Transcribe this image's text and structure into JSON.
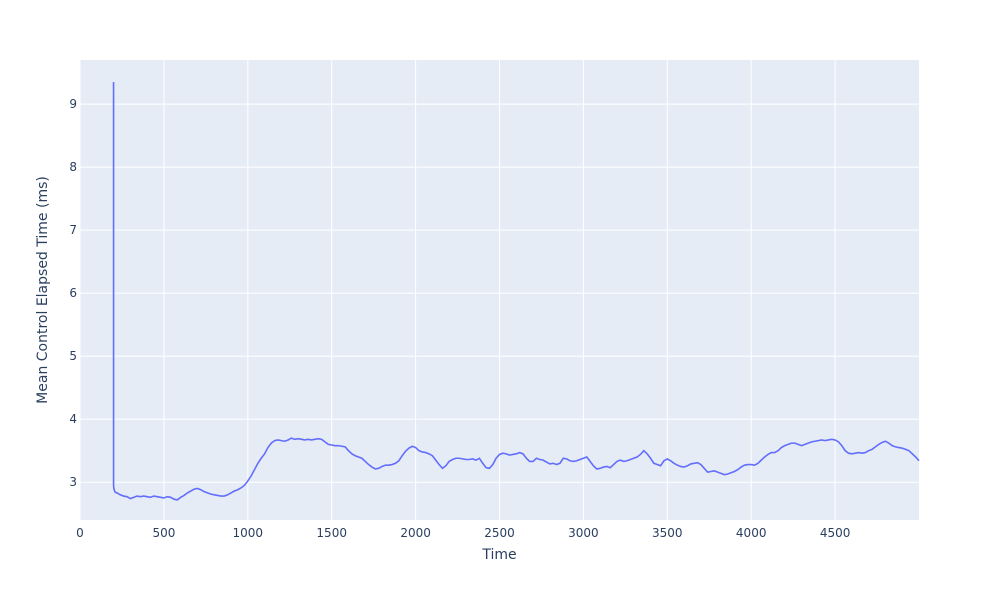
{
  "chart_data": {
    "type": "line",
    "xlabel": "Time",
    "ylabel": "Mean Control Elapsed Time (ms)",
    "xlim": [
      0,
      5000
    ],
    "ylim": [
      2.4,
      9.7
    ],
    "xticks": [
      0,
      500,
      1000,
      1500,
      2000,
      2500,
      3000,
      3500,
      4000,
      4500
    ],
    "yticks": [
      3,
      4,
      5,
      6,
      7,
      8,
      9
    ],
    "grid": true,
    "colors": {
      "plot_background": "#e5ecf6",
      "grid": "#ffffff",
      "line": "#636efa",
      "text": "#2a3f5f"
    },
    "series": [
      {
        "x": [
          200,
          200,
          202,
          205,
          210,
          220,
          240,
          260,
          280,
          300,
          320,
          340,
          360,
          380,
          400,
          420,
          440,
          460,
          480,
          500,
          520,
          540,
          560,
          580,
          600,
          620,
          640,
          660,
          680,
          700,
          720,
          740,
          760,
          780,
          800,
          820,
          840,
          860,
          880,
          900,
          920,
          940,
          960,
          980,
          1000,
          1020,
          1040,
          1060,
          1080,
          1100,
          1120,
          1140,
          1160,
          1180,
          1200,
          1220,
          1240,
          1260,
          1280,
          1300,
          1320,
          1340,
          1360,
          1380,
          1400,
          1420,
          1440,
          1460,
          1480,
          1500,
          1520,
          1540,
          1560,
          1580,
          1600,
          1620,
          1640,
          1660,
          1680,
          1700,
          1720,
          1740,
          1760,
          1780,
          1800,
          1820,
          1840,
          1860,
          1880,
          1900,
          1920,
          1940,
          1960,
          1980,
          2000,
          2020,
          2040,
          2060,
          2080,
          2100,
          2120,
          2140,
          2160,
          2180,
          2200,
          2220,
          2240,
          2260,
          2280,
          2300,
          2320,
          2340,
          2360,
          2380,
          2400,
          2420,
          2440,
          2460,
          2480,
          2500,
          2520,
          2540,
          2560,
          2580,
          2600,
          2620,
          2640,
          2660,
          2680,
          2700,
          2720,
          2740,
          2760,
          2780,
          2800,
          2820,
          2840,
          2860,
          2880,
          2900,
          2920,
          2940,
          2960,
          2980,
          3000,
          3020,
          3040,
          3060,
          3080,
          3100,
          3120,
          3140,
          3160,
          3180,
          3200,
          3220,
          3240,
          3260,
          3280,
          3300,
          3320,
          3340,
          3360,
          3380,
          3400,
          3420,
          3440,
          3460,
          3480,
          3500,
          3520,
          3540,
          3560,
          3580,
          3600,
          3620,
          3640,
          3660,
          3680,
          3700,
          3720,
          3740,
          3760,
          3780,
          3800,
          3820,
          3840,
          3860,
          3880,
          3900,
          3920,
          3940,
          3960,
          3980,
          4000,
          4020,
          4040,
          4060,
          4080,
          4100,
          4120,
          4140,
          4160,
          4180,
          4200,
          4220,
          4240,
          4260,
          4280,
          4300,
          4320,
          4340,
          4360,
          4380,
          4400,
          4420,
          4440,
          4460,
          4480,
          4500,
          4520,
          4540,
          4560,
          4580,
          4600,
          4620,
          4640,
          4660,
          4680,
          4700,
          4720,
          4740,
          4760,
          4780,
          4800,
          4820,
          4840,
          4860,
          4880,
          4900,
          4920,
          4940,
          4960,
          4980,
          5000
        ],
        "values": [
          9.35,
          2.95,
          2.9,
          2.87,
          2.84,
          2.83,
          2.8,
          2.78,
          2.77,
          2.74,
          2.76,
          2.78,
          2.77,
          2.78,
          2.77,
          2.76,
          2.78,
          2.77,
          2.76,
          2.75,
          2.77,
          2.76,
          2.73,
          2.72,
          2.76,
          2.79,
          2.83,
          2.86,
          2.89,
          2.9,
          2.88,
          2.85,
          2.83,
          2.81,
          2.8,
          2.79,
          2.78,
          2.78,
          2.8,
          2.83,
          2.86,
          2.88,
          2.91,
          2.95,
          3.02,
          3.1,
          3.2,
          3.3,
          3.38,
          3.45,
          3.55,
          3.62,
          3.66,
          3.67,
          3.66,
          3.65,
          3.67,
          3.7,
          3.68,
          3.69,
          3.68,
          3.67,
          3.68,
          3.67,
          3.68,
          3.69,
          3.68,
          3.64,
          3.6,
          3.59,
          3.58,
          3.58,
          3.57,
          3.56,
          3.5,
          3.45,
          3.42,
          3.4,
          3.38,
          3.33,
          3.28,
          3.24,
          3.21,
          3.22,
          3.25,
          3.27,
          3.27,
          3.28,
          3.3,
          3.34,
          3.42,
          3.49,
          3.54,
          3.57,
          3.55,
          3.5,
          3.48,
          3.47,
          3.45,
          3.42,
          3.35,
          3.28,
          3.22,
          3.26,
          3.33,
          3.36,
          3.38,
          3.38,
          3.37,
          3.36,
          3.36,
          3.37,
          3.35,
          3.38,
          3.3,
          3.23,
          3.22,
          3.28,
          3.38,
          3.44,
          3.46,
          3.45,
          3.43,
          3.44,
          3.45,
          3.47,
          3.45,
          3.38,
          3.33,
          3.33,
          3.38,
          3.36,
          3.35,
          3.32,
          3.29,
          3.3,
          3.28,
          3.3,
          3.38,
          3.37,
          3.34,
          3.33,
          3.34,
          3.36,
          3.38,
          3.4,
          3.33,
          3.26,
          3.21,
          3.22,
          3.24,
          3.25,
          3.23,
          3.28,
          3.33,
          3.35,
          3.33,
          3.34,
          3.36,
          3.38,
          3.4,
          3.44,
          3.5,
          3.45,
          3.38,
          3.3,
          3.28,
          3.26,
          3.34,
          3.37,
          3.34,
          3.3,
          3.27,
          3.25,
          3.24,
          3.26,
          3.29,
          3.3,
          3.31,
          3.28,
          3.22,
          3.16,
          3.17,
          3.18,
          3.16,
          3.14,
          3.12,
          3.13,
          3.15,
          3.17,
          3.2,
          3.24,
          3.27,
          3.28,
          3.28,
          3.27,
          3.3,
          3.35,
          3.4,
          3.44,
          3.47,
          3.47,
          3.5,
          3.55,
          3.58,
          3.6,
          3.62,
          3.62,
          3.6,
          3.58,
          3.6,
          3.62,
          3.64,
          3.65,
          3.66,
          3.67,
          3.66,
          3.67,
          3.68,
          3.67,
          3.64,
          3.58,
          3.5,
          3.46,
          3.45,
          3.46,
          3.47,
          3.46,
          3.47,
          3.5,
          3.52,
          3.56,
          3.6,
          3.63,
          3.65,
          3.62,
          3.58,
          3.56,
          3.55,
          3.54,
          3.52,
          3.5,
          3.45,
          3.4,
          3.34
        ]
      }
    ]
  }
}
